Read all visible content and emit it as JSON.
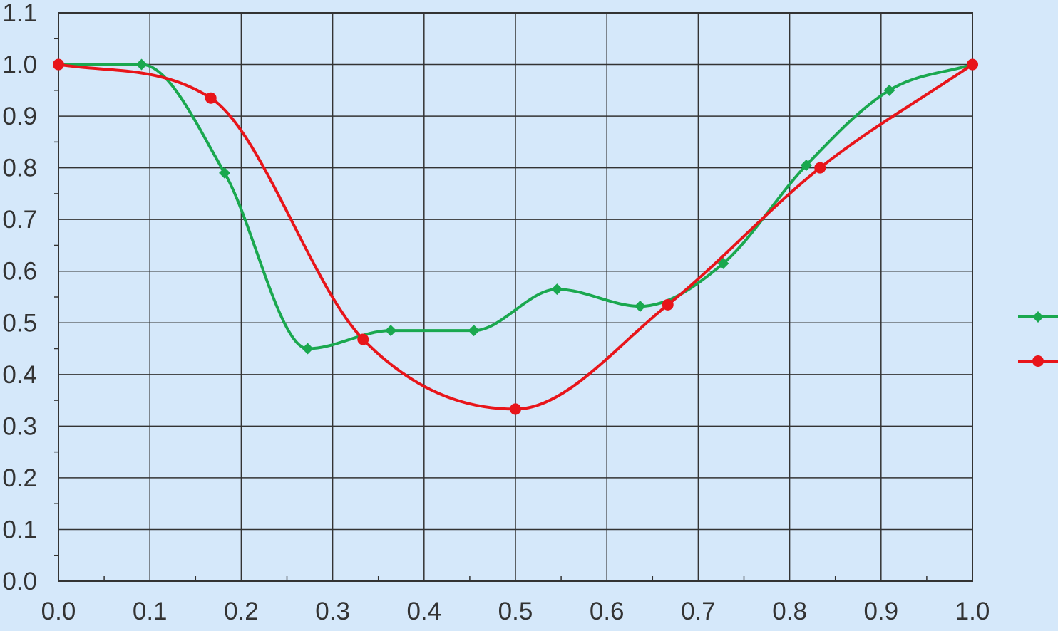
{
  "chart_data": {
    "type": "line",
    "smooth": true,
    "grid": true,
    "legend_position": "right",
    "xlim": [
      0.0,
      1.0
    ],
    "ylim": [
      0.0,
      1.1
    ],
    "x_ticks": [
      "0.0",
      "0.1",
      "0.2",
      "0.3",
      "0.4",
      "0.5",
      "0.6",
      "0.7",
      "0.8",
      "0.9",
      "1.0"
    ],
    "y_ticks": [
      "0.0",
      "0.1",
      "0.2",
      "0.3",
      "0.4",
      "0.5",
      "0.6",
      "0.7",
      "0.8",
      "0.9",
      "1.0",
      "1.1"
    ],
    "series": [
      {
        "color": "#1aa84f",
        "marker": "diamond",
        "x": [
          0.0,
          0.0909,
          0.1818,
          0.2727,
          0.3636,
          0.4545,
          0.5455,
          0.6364,
          0.7273,
          0.8182,
          0.9091,
          1.0
        ],
        "y": [
          1.0,
          1.0,
          0.79,
          0.45,
          0.485,
          0.485,
          0.565,
          0.532,
          0.615,
          0.805,
          0.95,
          1.0
        ]
      },
      {
        "color": "#e8151a",
        "marker": "circle",
        "x": [
          0.0,
          0.1667,
          0.3333,
          0.5,
          0.6667,
          0.8333,
          1.0
        ],
        "y": [
          1.0,
          0.935,
          0.468,
          0.333,
          0.535,
          0.8,
          1.0
        ]
      }
    ]
  }
}
